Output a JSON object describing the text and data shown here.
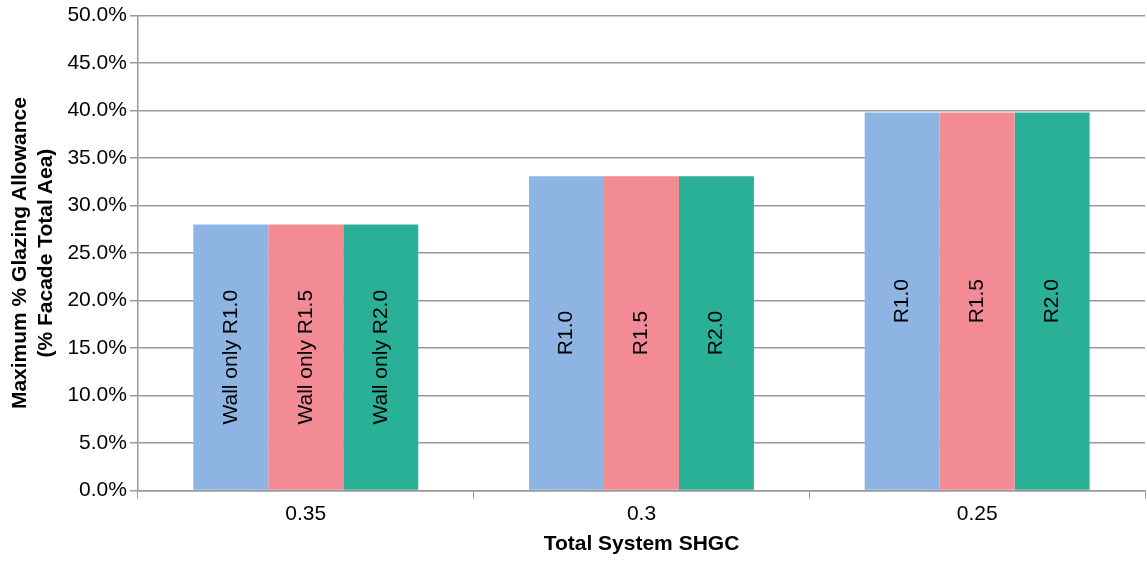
{
  "chart_data": {
    "type": "bar",
    "xlabel": "Total System SHGC",
    "ylabel": "Maximum % Glazing Allowance\n(% Facade Total Aea)",
    "categories": [
      "0.35",
      "0.3",
      "0.25"
    ],
    "series": [
      {
        "color": "#8db4e2",
        "values": [
          28.0,
          33.1,
          39.8
        ],
        "value_labels": [
          "Wall only R1.0",
          "R1.0",
          "R1.0"
        ]
      },
      {
        "color": "#f38b94",
        "values": [
          28.0,
          33.1,
          39.8
        ],
        "value_labels": [
          "Wall only R1.5",
          "R1.5",
          "R1.5"
        ]
      },
      {
        "color": "#29b096",
        "values": [
          28.0,
          33.1,
          39.8
        ],
        "value_labels": [
          "Wall only R2.0",
          "R2.0",
          "R2.0"
        ]
      }
    ],
    "ylim": [
      0,
      50
    ],
    "yticks": [
      {
        "value": 0,
        "label": "0.0%"
      },
      {
        "value": 5,
        "label": "5.0%"
      },
      {
        "value": 10,
        "label": "10.0%"
      },
      {
        "value": 15,
        "label": "15.0%"
      },
      {
        "value": 20,
        "label": "20.0%"
      },
      {
        "value": 25,
        "label": "25.0%"
      },
      {
        "value": 30,
        "label": "30.0%"
      },
      {
        "value": 35,
        "label": "35.0%"
      },
      {
        "value": 40,
        "label": "40.0%"
      },
      {
        "value": 45,
        "label": "45.0%"
      },
      {
        "value": 50,
        "label": "50.0%"
      }
    ],
    "grid": "y",
    "legend": false
  }
}
